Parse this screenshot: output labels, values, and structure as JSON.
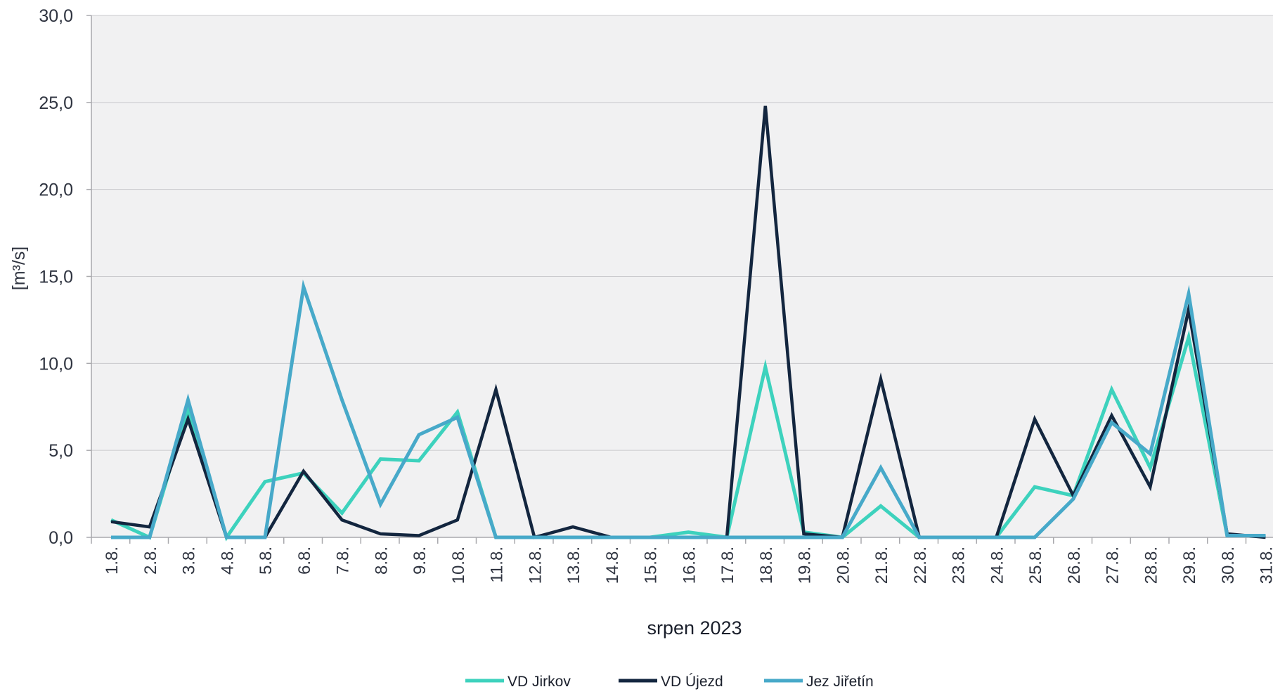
{
  "chart_data": {
    "type": "line",
    "xlabel": "srpen 2023",
    "ylabel": "[m³/s]",
    "ylim": [
      0,
      30
    ],
    "yticks": [
      "0,0",
      "5,0",
      "10,0",
      "15,0",
      "20,0",
      "25,0",
      "30,0"
    ],
    "ytick_values": [
      0,
      5,
      10,
      15,
      20,
      25,
      30
    ],
    "categories": [
      "1.8.",
      "2.8.",
      "3.8.",
      "4.8.",
      "5.8.",
      "6.8.",
      "7.8.",
      "8.8.",
      "9.8.",
      "10.8.",
      "11.8.",
      "12.8.",
      "13.8.",
      "14.8.",
      "15.8.",
      "16.8.",
      "17.8.",
      "18.8.",
      "19.8.",
      "20.8.",
      "21.8.",
      "22.8.",
      "23.8.",
      "24.8.",
      "25.8.",
      "26.8.",
      "27.8.",
      "28.8.",
      "29.8.",
      "30.8.",
      "31.8."
    ],
    "grid": true,
    "legend_position": "bottom",
    "plot_background": "#f1f1f2",
    "series": [
      {
        "name": "VD Jirkov",
        "color": "#3dd2bd",
        "values": [
          1.0,
          0.0,
          7.4,
          0.0,
          3.2,
          3.7,
          1.4,
          4.5,
          4.4,
          7.2,
          0.0,
          0.0,
          0.0,
          0.0,
          0.0,
          0.3,
          0.0,
          9.8,
          0.3,
          0.0,
          1.8,
          0.0,
          0.0,
          0.0,
          2.9,
          2.4,
          8.5,
          4.0,
          11.5,
          0.1,
          0.1
        ]
      },
      {
        "name": "VD Újezd",
        "color": "#13263f",
        "values": [
          0.9,
          0.6,
          6.8,
          0.0,
          0.0,
          3.8,
          1.0,
          0.2,
          0.1,
          1.0,
          8.5,
          0.0,
          0.6,
          0.0,
          0.0,
          0.0,
          0.0,
          24.8,
          0.2,
          0.0,
          9.1,
          0.0,
          0.0,
          0.0,
          6.8,
          2.4,
          7.0,
          2.9,
          13.1,
          0.2,
          0.0
        ]
      },
      {
        "name": "Jez Jiřetín",
        "color": "#47a9c9",
        "values": [
          0.0,
          0.0,
          7.9,
          0.0,
          0.0,
          14.4,
          7.9,
          1.9,
          5.9,
          6.9,
          0.0,
          0.0,
          0.0,
          0.0,
          0.0,
          0.0,
          0.0,
          0.0,
          0.0,
          0.0,
          4.0,
          0.0,
          0.0,
          0.0,
          0.0,
          2.2,
          6.6,
          4.8,
          14.0,
          0.1,
          0.1
        ]
      }
    ]
  }
}
